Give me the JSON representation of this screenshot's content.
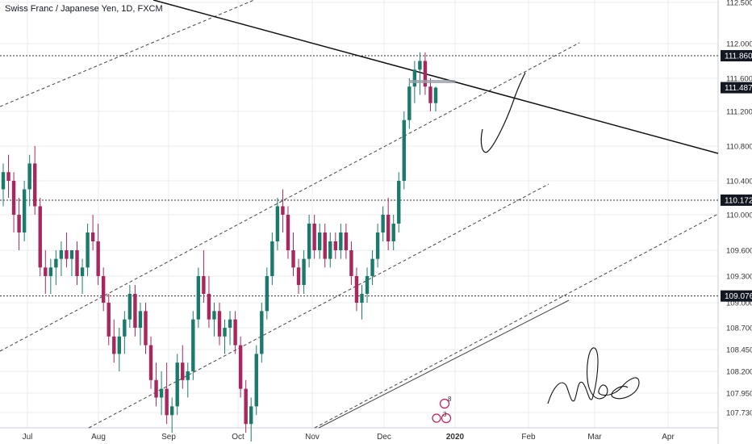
{
  "header": {
    "title": "Swiss Franc / Japanese Yen, 1D, FXCM"
  },
  "colors": {
    "up": "#26a69a",
    "upBody": "#1b7a6c",
    "down": "#a8275e",
    "grid": "#e8ebef",
    "axis_text": "#333",
    "tag_bg": "#131722",
    "tag_text": "#ffffff"
  },
  "chart_data": {
    "type": "candlestick",
    "title": "Swiss Franc / Japanese Yen, 1D, FXCM",
    "symbol": "CHFJPY",
    "interval": "1D",
    "source": "FXCM",
    "y_ticks": [
      "112.500",
      "112.000",
      "111.600",
      "111.200",
      "110.800",
      "110.400",
      "110.000",
      "109.600",
      "109.300",
      "109.000",
      "108.700",
      "108.450",
      "108.200",
      "107.950",
      "107.730"
    ],
    "ylim": [
      107.6,
      112.6
    ],
    "x_ticks": [
      "Jul",
      "Aug",
      "Sep",
      "Oct",
      "Nov",
      "Dec",
      "2020",
      "Feb",
      "Mar",
      "Apr"
    ],
    "price_tags": [
      {
        "label": "111.860",
        "value": 111.86
      },
      {
        "label": "111.487",
        "value": 111.487
      },
      {
        "label": "110.172",
        "value": 110.172
      },
      {
        "label": "109.076",
        "value": 109.076
      }
    ],
    "event_markers": [
      "8",
      "3"
    ],
    "candles": [
      [
        110.3,
        110.6,
        110.1,
        110.5
      ],
      [
        110.5,
        110.7,
        110.2,
        110.4
      ],
      [
        110.4,
        110.5,
        109.8,
        110.0
      ],
      [
        110.0,
        110.2,
        109.6,
        109.8
      ],
      [
        109.8,
        110.4,
        109.7,
        110.3
      ],
      [
        110.3,
        110.7,
        110.1,
        110.6
      ],
      [
        110.6,
        110.8,
        110.0,
        110.1
      ],
      [
        110.1,
        110.2,
        109.3,
        109.4
      ],
      [
        109.4,
        109.6,
        109.1,
        109.3
      ],
      [
        109.3,
        109.5,
        109.1,
        109.4
      ],
      [
        109.4,
        109.6,
        109.2,
        109.5
      ],
      [
        109.5,
        109.7,
        109.3,
        109.6
      ],
      [
        109.6,
        109.8,
        109.4,
        109.5
      ],
      [
        109.5,
        109.6,
        109.3,
        109.6
      ],
      [
        109.6,
        109.7,
        109.2,
        109.3
      ],
      [
        109.3,
        109.5,
        109.1,
        109.4
      ],
      [
        109.4,
        109.9,
        109.3,
        109.8
      ],
      [
        109.8,
        110.0,
        109.6,
        109.7
      ],
      [
        109.7,
        109.9,
        109.2,
        109.3
      ],
      [
        109.3,
        109.4,
        108.9,
        109.0
      ],
      [
        109.0,
        109.1,
        108.5,
        108.6
      ],
      [
        108.6,
        108.8,
        108.3,
        108.4
      ],
      [
        108.4,
        108.7,
        108.2,
        108.6
      ],
      [
        108.6,
        108.9,
        108.4,
        108.8
      ],
      [
        108.8,
        109.2,
        108.7,
        109.1
      ],
      [
        109.1,
        109.2,
        108.6,
        108.7
      ],
      [
        108.7,
        109.0,
        108.5,
        108.9
      ],
      [
        108.9,
        109.0,
        108.4,
        108.5
      ],
      [
        108.5,
        108.6,
        108.0,
        108.1
      ],
      [
        108.1,
        108.3,
        107.8,
        107.9
      ],
      [
        107.9,
        108.2,
        107.7,
        108.0
      ],
      [
        108.0,
        108.3,
        107.6,
        107.7
      ],
      [
        107.7,
        107.9,
        107.5,
        107.8
      ],
      [
        107.8,
        108.4,
        107.7,
        108.3
      ],
      [
        108.3,
        108.5,
        108.0,
        108.1
      ],
      [
        108.1,
        108.3,
        107.9,
        108.2
      ],
      [
        108.2,
        108.9,
        108.1,
        108.8
      ],
      [
        108.8,
        109.4,
        108.7,
        109.3
      ],
      [
        109.3,
        109.6,
        109.0,
        109.1
      ],
      [
        109.1,
        109.3,
        108.7,
        108.8
      ],
      [
        108.8,
        109.0,
        108.6,
        108.9
      ],
      [
        108.9,
        109.0,
        108.5,
        108.6
      ],
      [
        108.6,
        108.8,
        108.4,
        108.7
      ],
      [
        108.7,
        108.9,
        108.5,
        108.8
      ],
      [
        108.8,
        108.9,
        108.4,
        108.5
      ],
      [
        108.5,
        108.6,
        107.9,
        108.0
      ],
      [
        108.0,
        108.1,
        107.5,
        107.6
      ],
      [
        107.6,
        107.9,
        107.4,
        107.8
      ],
      [
        107.8,
        108.5,
        107.7,
        108.4
      ],
      [
        108.4,
        109.0,
        108.3,
        108.9
      ],
      [
        108.9,
        109.4,
        108.8,
        109.3
      ],
      [
        109.3,
        109.8,
        109.2,
        109.7
      ],
      [
        109.7,
        110.2,
        109.6,
        110.1
      ],
      [
        110.1,
        110.3,
        109.8,
        110.0
      ],
      [
        110.0,
        110.1,
        109.5,
        109.6
      ],
      [
        109.6,
        109.8,
        109.3,
        109.4
      ],
      [
        109.4,
        109.5,
        109.1,
        109.2
      ],
      [
        109.2,
        109.6,
        109.1,
        109.5
      ],
      [
        109.5,
        110.0,
        109.4,
        109.9
      ],
      [
        109.9,
        110.0,
        109.5,
        109.6
      ],
      [
        109.6,
        109.9,
        109.5,
        109.8
      ],
      [
        109.8,
        109.9,
        109.4,
        109.5
      ],
      [
        109.5,
        109.8,
        109.4,
        109.7
      ],
      [
        109.7,
        109.8,
        109.5,
        109.6
      ],
      [
        109.6,
        109.9,
        109.5,
        109.8
      ],
      [
        109.8,
        109.9,
        109.5,
        109.6
      ],
      [
        109.6,
        109.7,
        109.2,
        109.3
      ],
      [
        109.3,
        109.4,
        108.9,
        109.0
      ],
      [
        109.0,
        109.2,
        108.8,
        109.1
      ],
      [
        109.1,
        109.4,
        109.0,
        109.3
      ],
      [
        109.3,
        109.6,
        109.2,
        109.5
      ],
      [
        109.5,
        109.9,
        109.4,
        109.8
      ],
      [
        109.8,
        110.1,
        109.7,
        110.0
      ],
      [
        110.0,
        110.2,
        109.6,
        109.7
      ],
      [
        109.7,
        110.0,
        109.6,
        109.9
      ],
      [
        109.9,
        110.5,
        109.8,
        110.4
      ],
      [
        110.4,
        111.2,
        110.3,
        111.1
      ],
      [
        111.1,
        111.6,
        111.0,
        111.5
      ],
      [
        111.5,
        111.8,
        111.3,
        111.7
      ],
      [
        111.7,
        111.9,
        111.4,
        111.8
      ],
      [
        111.8,
        111.9,
        111.4,
        111.5
      ],
      [
        111.5,
        111.6,
        111.2,
        111.3
      ],
      [
        111.3,
        111.5,
        111.2,
        111.487
      ]
    ]
  }
}
